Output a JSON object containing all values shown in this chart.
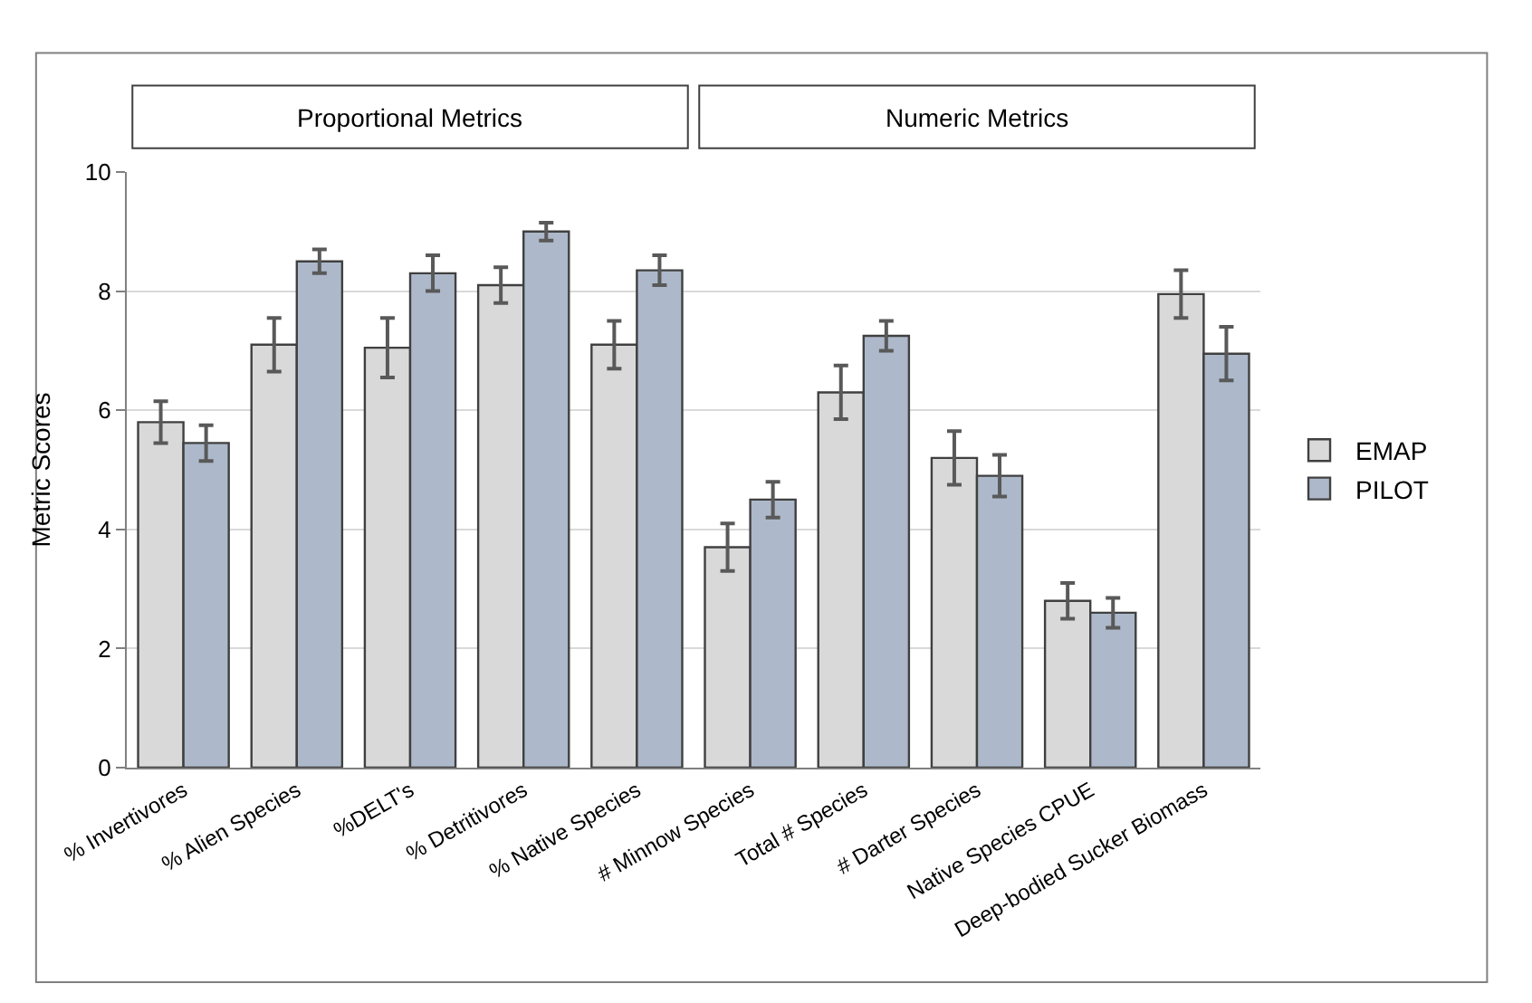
{
  "chart_data": {
    "type": "bar",
    "ylabel": "Metric Scores",
    "categories": [
      "% Invertivores",
      "% Alien Species",
      "%DELT's",
      "% Detritivores",
      "% Native Species",
      "# Minnow Species",
      "Total # Species",
      "# Darter Species",
      "Native Species CPUE",
      "Deep-bodied Sucker Biomass"
    ],
    "series": [
      {
        "name": "EMAP",
        "color": "#d9d9d9",
        "values": [
          5.8,
          7.1,
          7.05,
          8.1,
          7.1,
          3.7,
          6.3,
          5.2,
          2.8,
          7.95
        ],
        "errors": [
          0.35,
          0.45,
          0.5,
          0.3,
          0.4,
          0.4,
          0.45,
          0.45,
          0.3,
          0.4
        ]
      },
      {
        "name": "PILOT",
        "color": "#adb9ca",
        "values": [
          5.45,
          8.5,
          8.3,
          9.0,
          8.35,
          4.5,
          7.25,
          4.9,
          2.6,
          6.95
        ],
        "errors": [
          0.3,
          0.2,
          0.3,
          0.15,
          0.25,
          0.3,
          0.25,
          0.35,
          0.25,
          0.45
        ]
      }
    ],
    "annotations": [
      "Proportional Metrics",
      "Numeric Metrics"
    ],
    "ylim": [
      0,
      10
    ],
    "yticks": [
      0,
      2,
      4,
      6,
      8,
      10
    ],
    "grid": "y",
    "legend": "right"
  }
}
